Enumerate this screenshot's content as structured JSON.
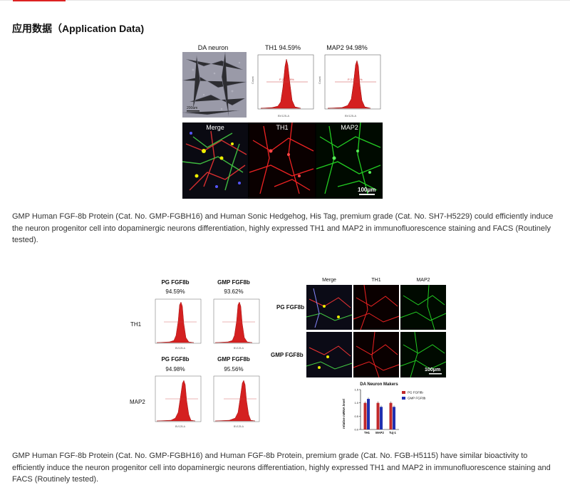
{
  "page": {
    "heading": "应用数据（Application Data)",
    "paragraph1": "GMP Human FGF-8b Protein (Cat. No. GMP-FGBH16) and Human Sonic Hedgehog, His Tag, premium grade (Cat. No. SH7-H5229) could efficiently induce the neuron progenitor cell into dopaminergic neurons differentiation, highly expressed TH1 and MAP2 in immunofluorescence staining and FACS (Routinely tested).",
    "paragraph2": "GMP Human FGF-8b Protein (Cat. No. GMP-FGBH16) and Human FGF-8b Protein, premium grade (Cat. No. FGB-H5115) have similar bioactivity to efficiently induce the neuron progenitor cell into dopaminergic neurons differentiation, highly expressed TH1 and MAP2 in immunofluorescence staining and FACS (Routinely tested)."
  },
  "figure1": {
    "top_labels": [
      "DA neuron",
      "TH1  94.59%",
      "MAP2  94.98%"
    ],
    "if_labels": [
      "Merge",
      "TH1",
      "MAP2"
    ],
    "scale_bar": "100μm",
    "microscope_scale": "200um"
  },
  "figure2": {
    "col_labels": [
      "PG FGF8b",
      "GMP FGF8b"
    ],
    "pct_th1": [
      "94.59%",
      "93.62%"
    ],
    "pct_map2": [
      "94.98%",
      "95.56%"
    ],
    "row_labels": [
      "TH1",
      "MAP2"
    ],
    "if_col_labels": [
      "Merge",
      "TH1",
      "MAP2"
    ],
    "if_row_labels": [
      "PG FGF8b",
      "GMP FGF8b"
    ],
    "scale_bar": "100μm"
  },
  "colors": {
    "accent": "#dd2222",
    "th1": "#e02020",
    "map2": "#20c020",
    "pg": "#c0282a",
    "gmp": "#2030b0"
  },
  "chart_data": {
    "type": "bar",
    "title": "DA Neuron Makers",
    "ylabel": "relative mRNA level",
    "categories": [
      "TH1",
      "MAP2",
      "Tuj-1"
    ],
    "series": [
      {
        "name": "PG FGF8b",
        "values": [
          1.0,
          1.0,
          1.0
        ]
      },
      {
        "name": "GMP FGF8b",
        "values": [
          1.15,
          0.85,
          0.85
        ]
      }
    ],
    "ylim": [
      0,
      1.5
    ],
    "yticks": [
      "0.0",
      "0.5",
      "1.0",
      "1.5"
    ],
    "legend": "top-right"
  }
}
